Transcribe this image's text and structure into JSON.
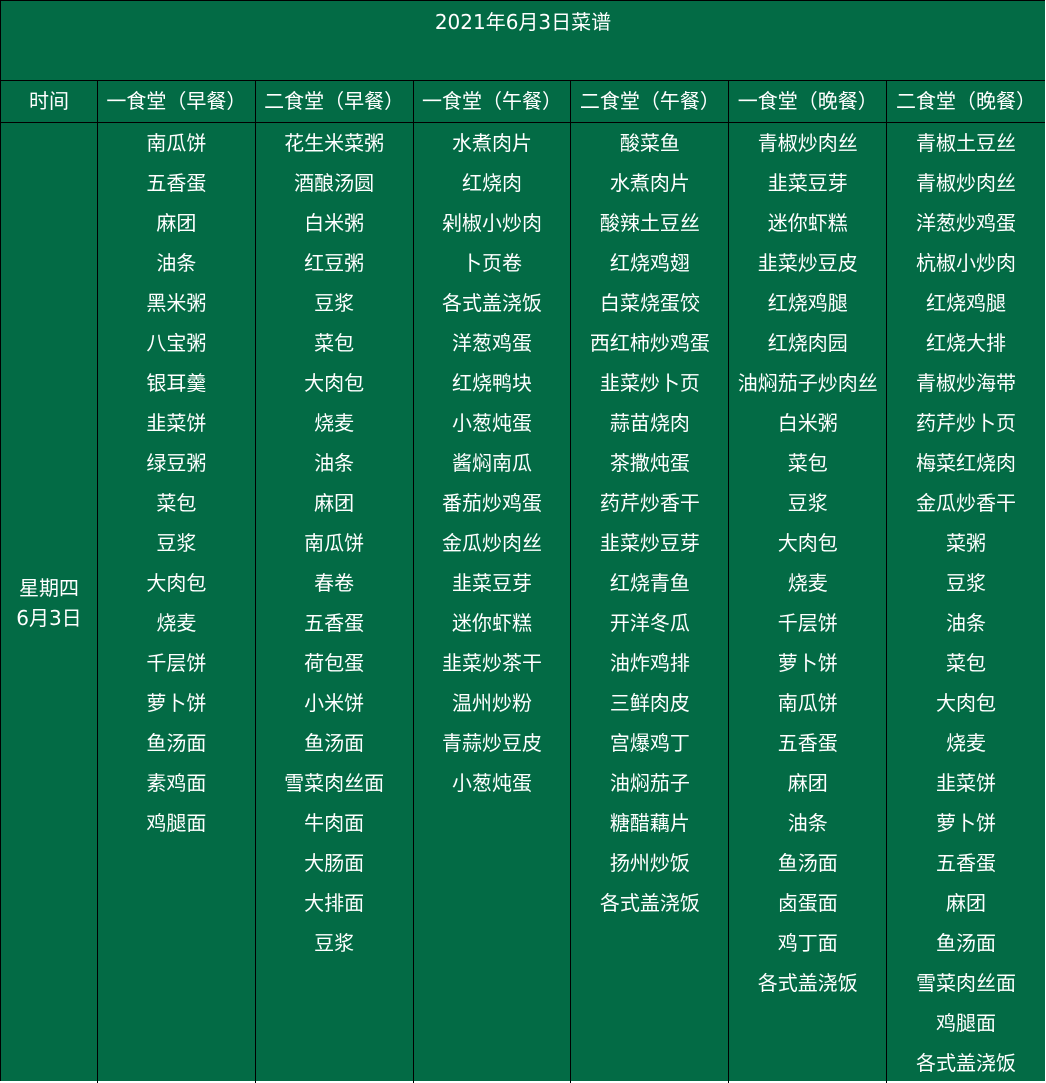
{
  "title": "2021年6月3日菜谱",
  "headers": [
    "时间",
    "一食堂（早餐）",
    "二食堂（早餐）",
    "一食堂（午餐）",
    "二食堂（午餐）",
    "一食堂（晚餐）",
    "二食堂（晚餐）"
  ],
  "time": {
    "weekday": "星期四",
    "date": "6月3日"
  },
  "colors": {
    "background": "#036b45",
    "text": "#ffffff",
    "border": "#000000"
  },
  "columns": [
    [
      "南瓜饼",
      "五香蛋",
      "麻团",
      "油条",
      "黑米粥",
      "八宝粥",
      "银耳羹",
      "韭菜饼",
      "绿豆粥",
      "菜包",
      "豆浆",
      "大肉包",
      "烧麦",
      "千层饼",
      "萝卜饼",
      "鱼汤面",
      "素鸡面",
      "鸡腿面"
    ],
    [
      "花生米菜粥",
      "酒酿汤圆",
      "白米粥",
      "红豆粥",
      "豆浆",
      "菜包",
      "大肉包",
      "烧麦",
      "油条",
      "麻团",
      "南瓜饼",
      "春卷",
      "五香蛋",
      "荷包蛋",
      "小米饼",
      "鱼汤面",
      "雪菜肉丝面",
      "牛肉面",
      "大肠面",
      "大排面",
      "豆浆"
    ],
    [
      "水煮肉片",
      "红烧肉",
      "剁椒小炒肉",
      "卜页卷",
      "各式盖浇饭",
      "洋葱鸡蛋",
      "红烧鸭块",
      "小葱炖蛋",
      "酱焖南瓜",
      "番茄炒鸡蛋",
      "金瓜炒肉丝",
      "韭菜豆芽",
      "迷你虾糕",
      "韭菜炒茶干",
      "温州炒粉",
      "青蒜炒豆皮",
      "小葱炖蛋"
    ],
    [
      "酸菜鱼",
      "水煮肉片",
      "酸辣土豆丝",
      "红烧鸡翅",
      "白菜烧蛋饺",
      "西红柿炒鸡蛋",
      "韭菜炒卜页",
      "蒜苗烧肉",
      "茶撒炖蛋",
      "药芹炒香干",
      "韭菜炒豆芽",
      "红烧青鱼",
      "开洋冬瓜",
      "油炸鸡排",
      "三鲜肉皮",
      "宫爆鸡丁",
      "油焖茄子",
      "糖醋藕片",
      "扬州炒饭",
      "各式盖浇饭"
    ],
    [
      "青椒炒肉丝",
      "韭菜豆芽",
      "迷你虾糕",
      "韭菜炒豆皮",
      "红烧鸡腿",
      "红烧肉园",
      "油焖茄子炒肉丝",
      "白米粥",
      "菜包",
      "豆浆",
      "大肉包",
      "烧麦",
      "千层饼",
      "萝卜饼",
      "南瓜饼",
      "五香蛋",
      "麻团",
      "油条",
      "鱼汤面",
      "卤蛋面",
      "鸡丁面",
      "各式盖浇饭"
    ],
    [
      "青椒土豆丝",
      "青椒炒肉丝",
      "洋葱炒鸡蛋",
      "杭椒小炒肉",
      "红烧鸡腿",
      "红烧大排",
      "青椒炒海带",
      "药芹炒卜页",
      "梅菜红烧肉",
      "金瓜炒香干",
      "菜粥",
      "豆浆",
      "油条",
      "菜包",
      "大肉包",
      "烧麦",
      "韭菜饼",
      "萝卜饼",
      "五香蛋",
      "麻团",
      "鱼汤面",
      "雪菜肉丝面",
      "鸡腿面",
      "各式盖浇饭"
    ]
  ]
}
